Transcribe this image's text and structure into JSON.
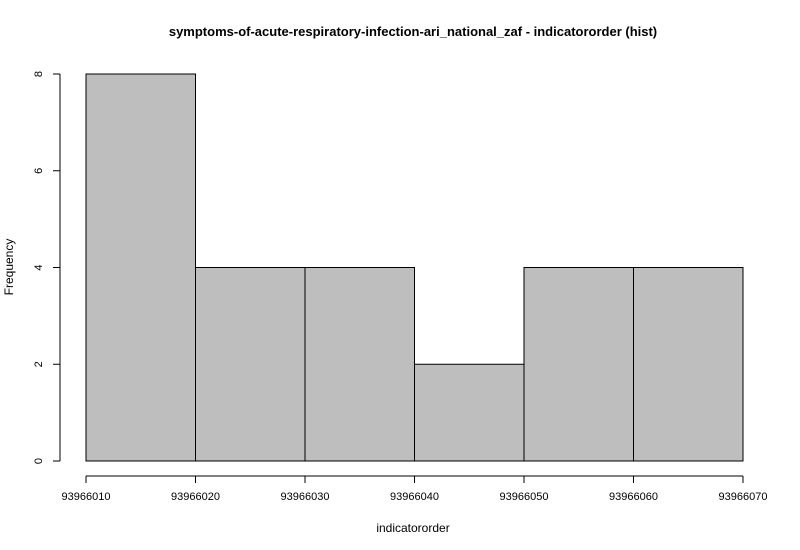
{
  "chart_data": {
    "type": "bar",
    "title": "symptoms-of-acute-respiratory-infection-ari_national_zaf - indicatororder (hist)",
    "xlabel": "indicatororder",
    "ylabel": "Frequency",
    "bins": [
      {
        "start": 93966010,
        "end": 93966020,
        "count": 8
      },
      {
        "start": 93966020,
        "end": 93966030,
        "count": 4
      },
      {
        "start": 93966030,
        "end": 93966040,
        "count": 4
      },
      {
        "start": 93966040,
        "end": 93966050,
        "count": 2
      },
      {
        "start": 93966050,
        "end": 93966060,
        "count": 4
      },
      {
        "start": 93966060,
        "end": 93966070,
        "count": 4
      }
    ],
    "xticks": [
      93966010,
      93966020,
      93966030,
      93966040,
      93966050,
      93966060,
      93966070
    ],
    "yticks": [
      0,
      2,
      4,
      6,
      8
    ],
    "xlim": [
      93966010,
      93966070
    ],
    "ylim": [
      0,
      8
    ],
    "grid": false,
    "legend": "none"
  }
}
